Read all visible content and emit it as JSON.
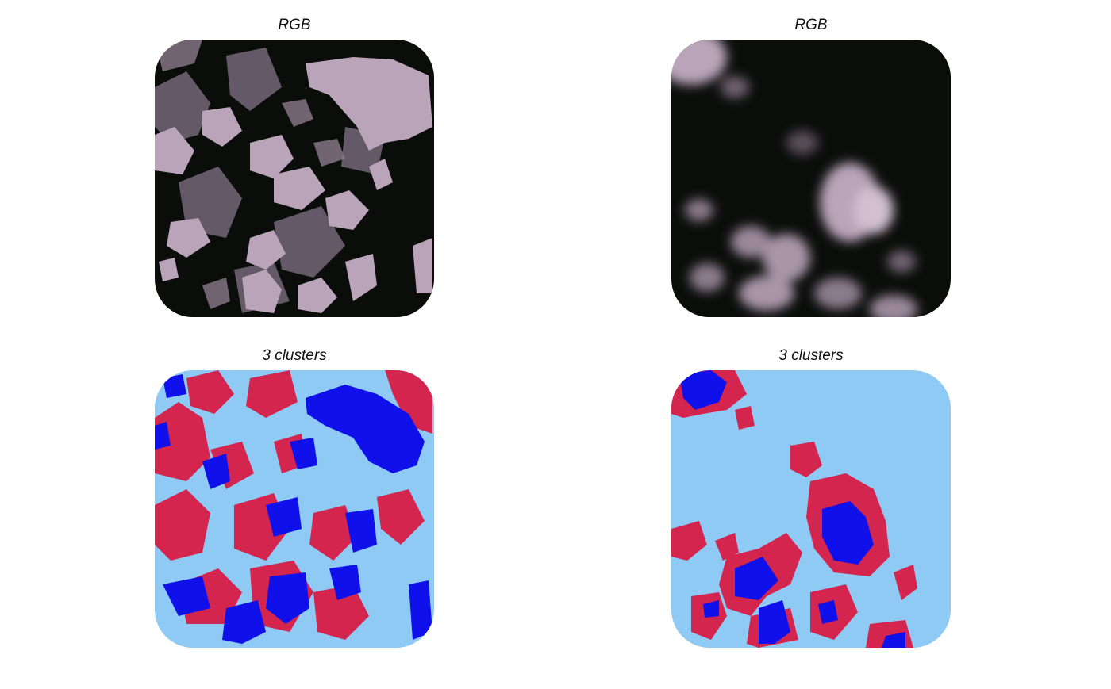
{
  "figure": {
    "panels": [
      {
        "id": "rgb-left",
        "title": "RGB",
        "kind": "rgb-texture"
      },
      {
        "id": "rgb-right",
        "title": "RGB",
        "kind": "rgb-clouds"
      },
      {
        "id": "clusters-left",
        "title": "3 clusters",
        "kind": "cluster-texture"
      },
      {
        "id": "clusters-right",
        "title": "3 clusters",
        "kind": "cluster-clouds"
      }
    ]
  },
  "colors": {
    "rgb_dark": "#0b0d0b",
    "rgb_mid": "#5a4f5a",
    "rgb_light": "#b9a4b9",
    "cluster_background": "#8fcaf5",
    "cluster_red": "#d4254f",
    "cluster_blue": "#1010ea"
  }
}
